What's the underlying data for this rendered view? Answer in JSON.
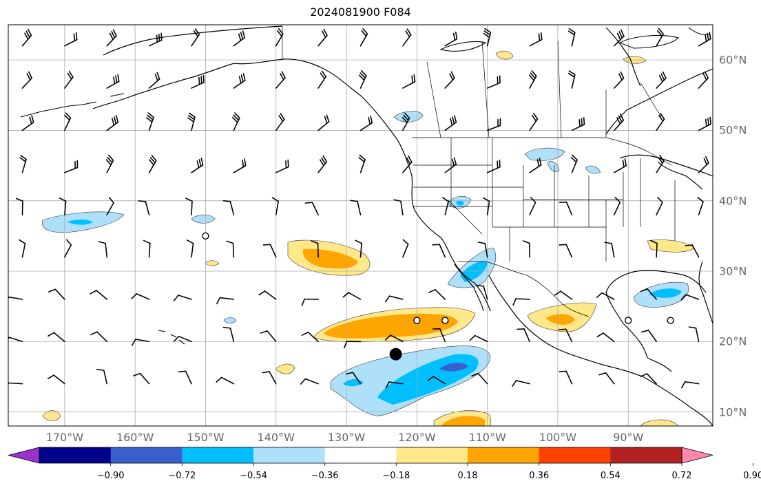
{
  "title": "2024081900 F084",
  "map": {
    "projection": "PlateCarree",
    "lon_range": [
      -178,
      -78
    ],
    "lat_range": [
      8,
      65
    ],
    "gridlines": true,
    "features": [
      "coastlines",
      "country-borders",
      "us-state-borders",
      "wind-barbs",
      "shaded-anomaly-contours",
      "storm-position-markers"
    ],
    "lon_labels": [
      "170°W",
      "160°W",
      "150°W",
      "140°W",
      "130°W",
      "120°W",
      "110°W",
      "100°W",
      "90°W"
    ],
    "lat_labels": [
      "60°N",
      "50°N",
      "40°N",
      "30°N",
      "20°N",
      "10°N"
    ],
    "markers": [
      {
        "type": "large-filled-dot",
        "lon": -123.0,
        "lat": 18.2
      },
      {
        "type": "open-circle",
        "lon": -150.0,
        "lat": 35.0
      },
      {
        "type": "open-circle",
        "lon": -120.0,
        "lat": 23.0
      },
      {
        "type": "open-circle",
        "lon": -116.0,
        "lat": 23.0
      },
      {
        "type": "open-circle",
        "lon": -90.0,
        "lat": 23.0
      },
      {
        "type": "open-circle",
        "lon": -84.0,
        "lat": 23.0
      }
    ]
  },
  "colorbar": {
    "orientation": "horizontal",
    "extend": "both",
    "ticks": [
      "−0.90",
      "−0.72",
      "−0.54",
      "−0.36",
      "−0.18",
      "0.18",
      "0.36",
      "0.54",
      "0.72",
      "0.90"
    ],
    "colors": [
      "#9932cc",
      "#00008b",
      "#3a5fcd",
      "#00bfff",
      "#aee0fa",
      "#ffffff",
      "#ffe88a",
      "#ffa500",
      "#ff4000",
      "#b22222",
      "#ff88aa"
    ],
    "colors_order": "under, bins between ticks, over"
  }
}
